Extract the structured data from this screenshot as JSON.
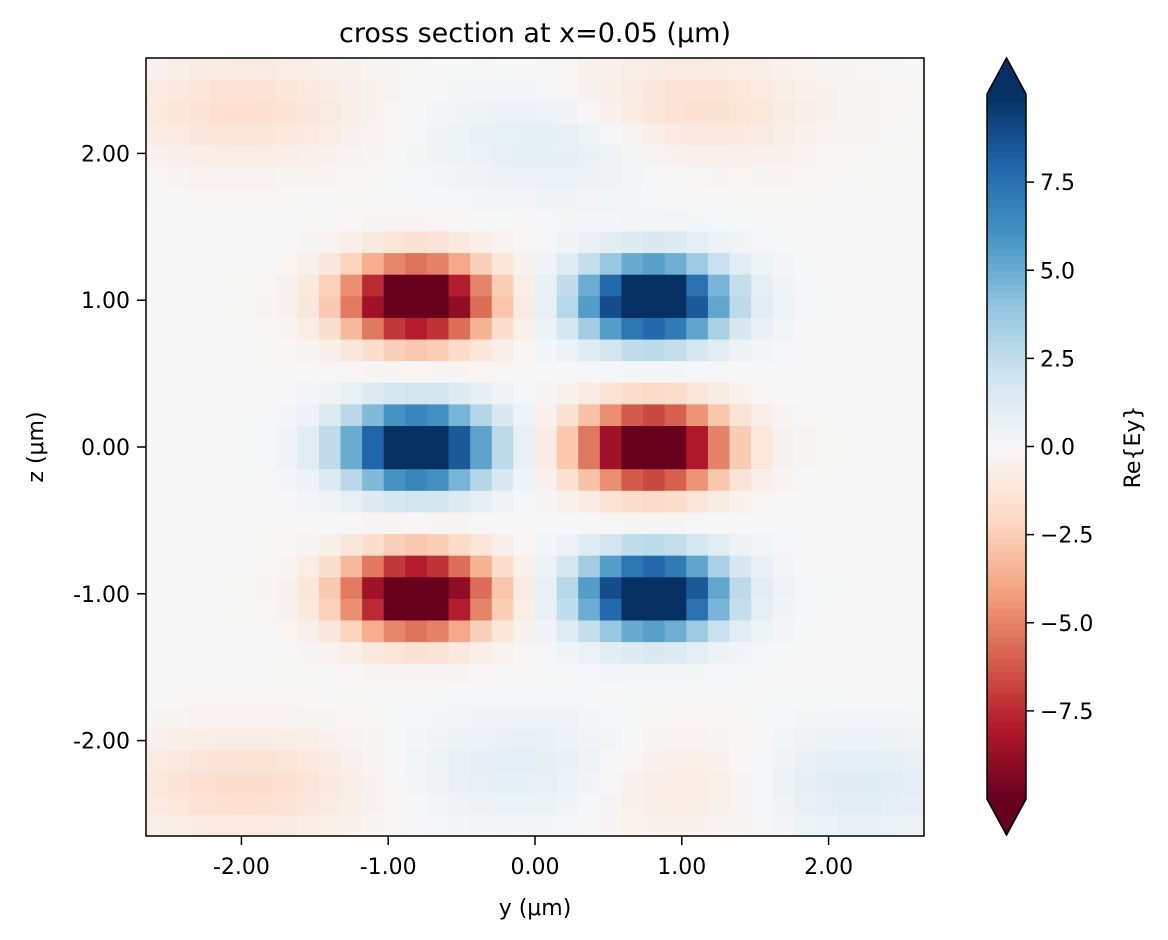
{
  "chart_data": {
    "type": "heatmap",
    "title": "cross section at x=0.05 (μm)",
    "xlabel": "y (μm)",
    "ylabel": "z (μm)",
    "xlim": [
      -2.65,
      2.65
    ],
    "ylim": [
      -2.65,
      2.65
    ],
    "xticks": [
      {
        "value": -2.0,
        "label": "-2.00"
      },
      {
        "value": -1.0,
        "label": "-1.00"
      },
      {
        "value": 0.0,
        "label": "0.00"
      },
      {
        "value": 1.0,
        "label": "1.00"
      },
      {
        "value": 2.0,
        "label": "2.00"
      }
    ],
    "yticks": [
      {
        "value": -2.0,
        "label": "-2.00"
      },
      {
        "value": -1.0,
        "label": "-1.00"
      },
      {
        "value": 0.0,
        "label": "0.00"
      },
      {
        "value": 1.0,
        "label": "1.00"
      },
      {
        "value": 2.0,
        "label": "2.00"
      }
    ],
    "grid": false,
    "colorscale": "RdBu",
    "colorbar": {
      "label": "Re{Ey}",
      "vmin": -10,
      "vmax": 10,
      "extend": "both",
      "ticks": [
        {
          "value": -7.5,
          "label": "−7.5"
        },
        {
          "value": -5.0,
          "label": "−5.0"
        },
        {
          "value": -2.5,
          "label": "−2.5"
        },
        {
          "value": 0.0,
          "label": "0.0"
        },
        {
          "value": 2.5,
          "label": "2.5"
        },
        {
          "value": 5.0,
          "label": "5.0"
        },
        {
          "value": 7.5,
          "label": "7.5"
        }
      ]
    },
    "grid_size": 36,
    "lobes": [
      {
        "y": -0.8,
        "z": 1.0,
        "amplitude": -13
      },
      {
        "y": 0.8,
        "z": 1.0,
        "amplitude": 13
      },
      {
        "y": -0.8,
        "z": 0.0,
        "amplitude": 13
      },
      {
        "y": 0.8,
        "z": 0.0,
        "amplitude": -13
      },
      {
        "y": -0.8,
        "z": -1.0,
        "amplitude": -13
      },
      {
        "y": 0.8,
        "z": -1.0,
        "amplitude": 13
      }
    ],
    "background_lobes": [
      {
        "y": -2.0,
        "z": 2.3,
        "amplitude": -1.6
      },
      {
        "y": 0.2,
        "z": 2.1,
        "amplitude": 1.3
      },
      {
        "y": 1.0,
        "z": 2.3,
        "amplitude": -1.8
      },
      {
        "y": -2.0,
        "z": -2.3,
        "amplitude": -1.8
      },
      {
        "y": 0.0,
        "z": -2.2,
        "amplitude": 1.2
      },
      {
        "y": 1.0,
        "z": -2.3,
        "amplitude": -1.2
      },
      {
        "y": 2.1,
        "z": -2.3,
        "amplitude": 1.4
      }
    ],
    "colormap_stops": [
      "#67001f",
      "#b2182b",
      "#d6604d",
      "#f4a582",
      "#fddbc7",
      "#f7f7f7",
      "#d1e5f0",
      "#92c5de",
      "#4393c3",
      "#2166ac",
      "#053061"
    ]
  }
}
